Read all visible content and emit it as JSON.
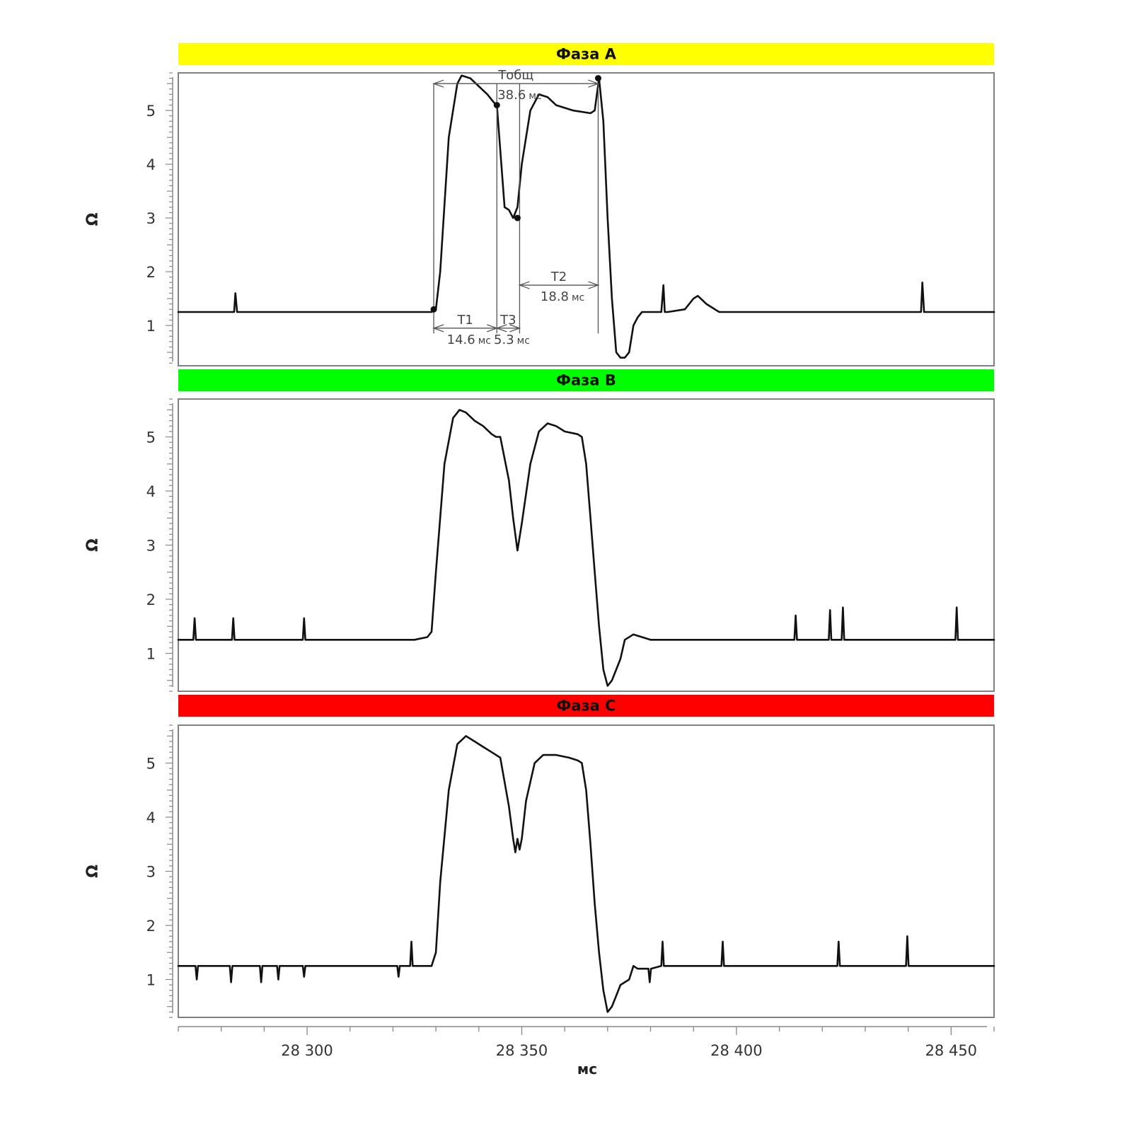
{
  "chart_data": {
    "type": "line",
    "xlabel": "мс",
    "x_ticks": [
      28300,
      28350,
      28400,
      28450
    ],
    "x_tick_labels": [
      "28 300",
      "28 350",
      "28 400",
      "28 450"
    ],
    "xlim": [
      28270,
      28460
    ],
    "panels": [
      {
        "title": "Фаза A",
        "color": "#ffff00",
        "ylabel": "Ω",
        "ylim": [
          0.25,
          5.7
        ],
        "y_ticks": [
          1,
          2,
          3,
          4,
          5
        ],
        "series": {
          "x": [
            28270,
            28282,
            28283,
            28283.3,
            28283.7,
            28284,
            28285,
            28310,
            28329,
            28330,
            28331,
            28333,
            28335,
            28336,
            28338,
            28340,
            28342,
            28343.5,
            28344.2,
            28346,
            28347,
            28348,
            28349,
            28350,
            28352,
            28354,
            28356,
            28358,
            28362,
            28366,
            28367,
            28368,
            28369,
            28370,
            28371,
            28372,
            28373,
            28374,
            28375,
            28376,
            28377,
            28378,
            28380,
            28382.5,
            28383,
            28383.3,
            28384,
            28388,
            28390,
            28391,
            28393,
            28396,
            28400,
            28420,
            28442,
            28443,
            28443.3,
            28443.7,
            28444,
            28445,
            28460
          ],
          "y": [
            1.25,
            1.25,
            1.25,
            1.6,
            1.25,
            1.25,
            1.25,
            1.25,
            1.25,
            1.3,
            2.0,
            4.5,
            5.5,
            5.65,
            5.6,
            5.45,
            5.3,
            5.15,
            5.1,
            3.2,
            3.15,
            3.0,
            3.2,
            4.0,
            5.0,
            5.3,
            5.25,
            5.1,
            5.0,
            4.95,
            5.0,
            5.6,
            4.8,
            3.0,
            1.5,
            0.5,
            0.4,
            0.4,
            0.5,
            1.0,
            1.15,
            1.25,
            1.25,
            1.25,
            1.75,
            1.25,
            1.25,
            1.3,
            1.5,
            1.55,
            1.4,
            1.25,
            1.25,
            1.25,
            1.25,
            1.25,
            1.8,
            1.25,
            1.25,
            1.25,
            1.25
          ]
        },
        "markers": {
          "x": [
            28329.5,
            28344.2,
            28349,
            28367.8
          ],
          "y": [
            1.3,
            5.1,
            3.0,
            5.6
          ]
        },
        "annotations": [
          {
            "label": "Тобщ",
            "value": "38.6",
            "unit": "мс",
            "x1": 28329.5,
            "x2": 28367.8,
            "y": 5.5
          },
          {
            "label": "T1",
            "value": "14.6",
            "unit": "мс",
            "x1": 28329.5,
            "x2": 28344.2,
            "y": 0.95
          },
          {
            "label": "T3",
            "value": "5.3",
            "unit": "мс",
            "x1": 28344.2,
            "x2": 28349.5,
            "y": 0.95
          },
          {
            "label": "T2",
            "value": "18.8",
            "unit": "мс",
            "x1": 28349.5,
            "x2": 28367.8,
            "y": 1.75
          }
        ]
      },
      {
        "title": "Фаза B",
        "color": "#00ff00",
        "ylabel": "Ω",
        "ylim": [
          0.3,
          5.7
        ],
        "y_ticks": [
          1,
          2,
          3,
          4,
          5
        ],
        "series": {
          "x": [
            28270,
            28273.5,
            28273.8,
            28274.1,
            28282.5,
            28282.8,
            28283.1,
            28299,
            28299.3,
            28299.6,
            28325,
            28328,
            28329,
            28330,
            28332,
            28334,
            28335.5,
            28337,
            28339,
            28341,
            28343,
            28344,
            28345,
            28347,
            28348,
            28349,
            28350,
            28352,
            28354,
            28356,
            28358,
            28360,
            28363,
            28364,
            28365,
            28366,
            28367,
            28368,
            28369,
            28370,
            28371,
            28372,
            28373,
            28374,
            28376,
            28378,
            28380,
            28385,
            28413.5,
            28413.8,
            28414.1,
            28421.5,
            28421.8,
            28422.1,
            28424.5,
            28424.8,
            28425.1,
            28440,
            28451,
            28451.3,
            28451.6,
            28460
          ],
          "y": [
            1.25,
            1.25,
            1.65,
            1.25,
            1.25,
            1.65,
            1.25,
            1.25,
            1.65,
            1.25,
            1.25,
            1.3,
            1.4,
            2.5,
            4.5,
            5.35,
            5.5,
            5.45,
            5.3,
            5.2,
            5.05,
            5.0,
            5.0,
            4.2,
            3.5,
            2.9,
            3.4,
            4.5,
            5.1,
            5.25,
            5.2,
            5.1,
            5.05,
            5.0,
            4.5,
            3.5,
            2.5,
            1.5,
            0.7,
            0.4,
            0.5,
            0.7,
            0.9,
            1.25,
            1.35,
            1.3,
            1.25,
            1.25,
            1.25,
            1.7,
            1.25,
            1.25,
            1.8,
            1.25,
            1.25,
            1.85,
            1.25,
            1.25,
            1.25,
            1.85,
            1.25,
            1.25
          ]
        }
      },
      {
        "title": "Фаза C",
        "color": "#ff0000",
        "ylabel": "Ω",
        "ylim": [
          0.3,
          5.7
        ],
        "y_ticks": [
          1,
          2,
          3,
          4,
          5
        ],
        "series": {
          "x": [
            28270,
            28274,
            28274.3,
            28274.6,
            28282,
            28282.3,
            28282.6,
            28289,
            28289.3,
            28289.6,
            28293,
            28293.3,
            28293.6,
            28299,
            28299.3,
            28299.6,
            28321,
            28321.3,
            28321.6,
            28324,
            28324.3,
            28324.6,
            28329,
            28330,
            28331,
            28333,
            28335,
            28337,
            28339,
            28341,
            28343,
            28345,
            28347,
            28348,
            28348.5,
            28349,
            28349.5,
            28350,
            28351,
            28353,
            28355,
            28358,
            28361,
            28363,
            28364,
            28365,
            28366,
            28367,
            28368,
            28369,
            28370,
            28371,
            28372,
            28373,
            28375,
            28376,
            28377,
            28378,
            28379.5,
            28379.8,
            28380.1,
            28382.5,
            28382.8,
            28383.1,
            28396.5,
            28396.8,
            28397.1,
            28423.5,
            28423.8,
            28424.1,
            28439.5,
            28439.8,
            28440.1,
            28460
          ],
          "y": [
            1.25,
            1.25,
            1.0,
            1.25,
            1.25,
            0.95,
            1.25,
            1.25,
            0.95,
            1.25,
            1.25,
            1.0,
            1.25,
            1.25,
            1.05,
            1.25,
            1.25,
            1.05,
            1.25,
            1.25,
            1.7,
            1.25,
            1.25,
            1.5,
            2.8,
            4.5,
            5.35,
            5.5,
            5.4,
            5.3,
            5.2,
            5.1,
            4.2,
            3.6,
            3.35,
            3.6,
            3.4,
            3.6,
            4.3,
            5.0,
            5.15,
            5.15,
            5.1,
            5.05,
            5.0,
            4.5,
            3.5,
            2.4,
            1.5,
            0.8,
            0.4,
            0.5,
            0.7,
            0.9,
            1.0,
            1.25,
            1.2,
            1.2,
            1.2,
            0.95,
            1.2,
            1.25,
            1.7,
            1.25,
            1.25,
            1.7,
            1.25,
            1.25,
            1.7,
            1.25,
            1.25,
            1.8,
            1.25,
            1.25
          ]
        }
      }
    ]
  }
}
